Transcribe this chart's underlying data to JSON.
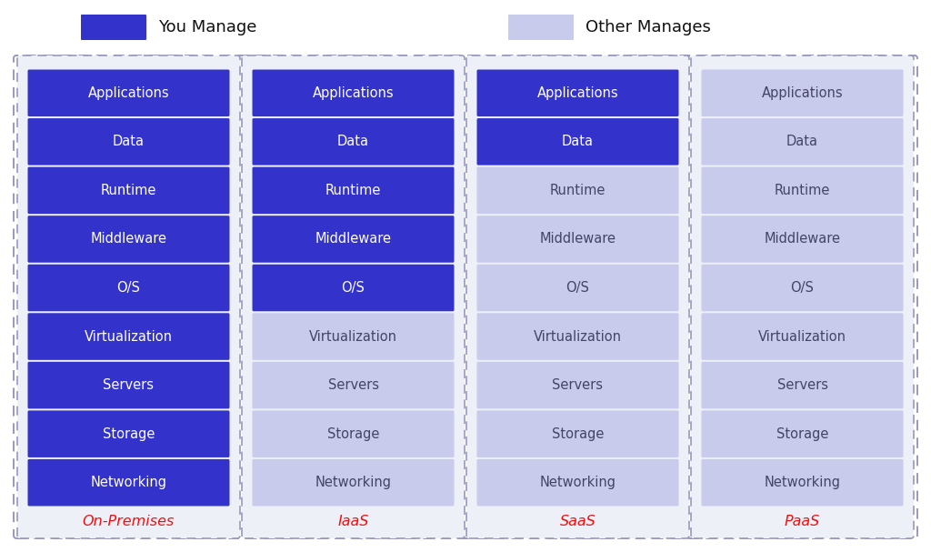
{
  "background_color": "#ffffff",
  "panel_bg": "#eef0f8",
  "dark_blue": "#3333cc",
  "light_blue": "#c8cbec",
  "label_color": "#ee1111",
  "text_white": "#ffffff",
  "text_dark": "#444466",
  "rows": [
    "Applications",
    "Data",
    "Runtime",
    "Middleware",
    "O/S",
    "Virtualization",
    "Servers",
    "Storage",
    "Networking"
  ],
  "columns": [
    {
      "label": "On-Premises",
      "managed": [
        0,
        1,
        2,
        3,
        4,
        5,
        6,
        7,
        8
      ]
    },
    {
      "label": "IaaS",
      "managed": [
        0,
        1,
        2,
        3,
        4
      ]
    },
    {
      "label": "SaaS",
      "managed": [
        0,
        1
      ]
    },
    {
      "label": "PaaS",
      "managed": []
    }
  ],
  "legend_you_manage_color": "#3333cc",
  "legend_other_manages_color": "#c8cbec",
  "legend_you_manage_label": "You Manage",
  "legend_other_manages_label": "Other Manages",
  "dashed_edge_color": "#9999bb",
  "fig_width": 10.24,
  "fig_height": 6.07,
  "dpi": 100
}
